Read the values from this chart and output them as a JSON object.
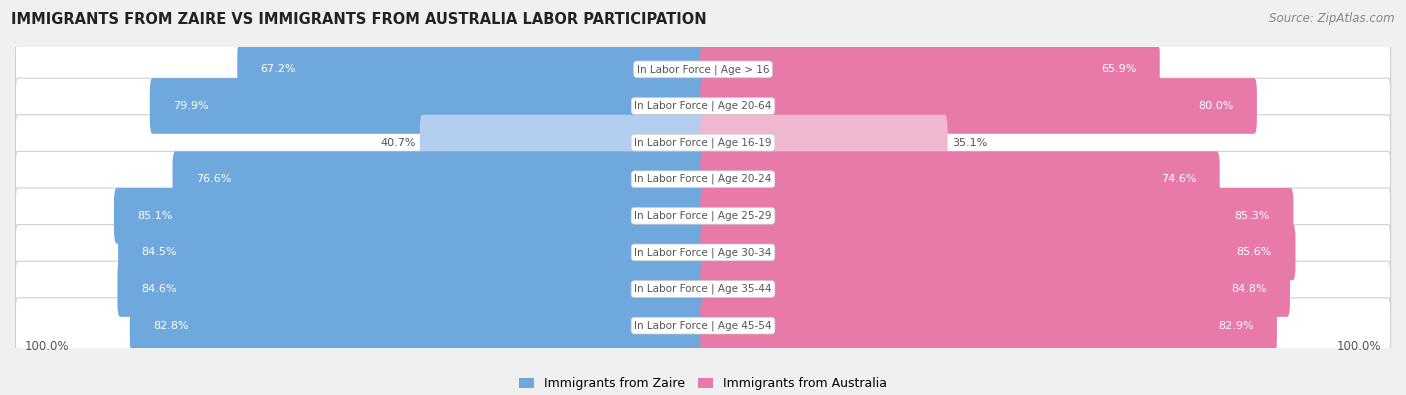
{
  "title": "IMMIGRANTS FROM ZAIRE VS IMMIGRANTS FROM AUSTRALIA LABOR PARTICIPATION",
  "source": "Source: ZipAtlas.com",
  "categories": [
    "In Labor Force | Age > 16",
    "In Labor Force | Age 20-64",
    "In Labor Force | Age 16-19",
    "In Labor Force | Age 20-24",
    "In Labor Force | Age 25-29",
    "In Labor Force | Age 30-34",
    "In Labor Force | Age 35-44",
    "In Labor Force | Age 45-54"
  ],
  "zaire_values": [
    67.2,
    79.9,
    40.7,
    76.6,
    85.1,
    84.5,
    84.6,
    82.8
  ],
  "australia_values": [
    65.9,
    80.0,
    35.1,
    74.6,
    85.3,
    85.6,
    84.8,
    82.9
  ],
  "zaire_color": "#6fa8dc",
  "zaire_color_light": "#b4cef0",
  "australia_color": "#e87aaa",
  "australia_color_light": "#f0b8d0",
  "max_val": 100.0,
  "bg_color": "#f0f0f0",
  "row_bg": "#f8f8f8",
  "row_bg_alt": "#ffffff",
  "label_white": "#ffffff",
  "label_dark": "#555555",
  "legend_zaire": "Immigrants from Zaire",
  "legend_australia": "Immigrants from Australia"
}
